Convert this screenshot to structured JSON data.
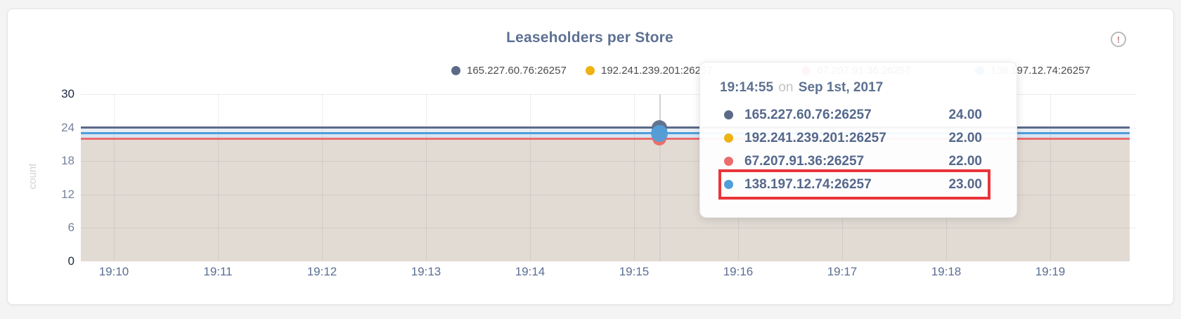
{
  "page": {
    "background": "#f4f4f5"
  },
  "card": {
    "title": "Leaseholders per Store",
    "info_glyph": "!"
  },
  "legend": {
    "items": [
      {
        "label": "165.227.60.76:26257",
        "color": "#5c6a88"
      },
      {
        "label": "192.241.239.201:26257",
        "color": "#eeb211"
      },
      {
        "label": "67.207.91.36:26257",
        "color": "#eb6c6c"
      },
      {
        "label": "138.197.12.74:26257",
        "color": "#4f9fda"
      }
    ]
  },
  "chart_data": {
    "type": "line",
    "title": "Leaseholders per Store",
    "xlabel": "",
    "ylabel": "count",
    "ylim": [
      0,
      30
    ],
    "yticks": [
      0,
      6,
      12,
      18,
      24,
      30
    ],
    "x_ticklabels": [
      "19:10",
      "19:11",
      "19:12",
      "19:13",
      "19:14",
      "19:15",
      "19:16",
      "19:17",
      "19:18",
      "19:19"
    ],
    "grid": true,
    "legend_position": "top-right",
    "series": [
      {
        "name": "165.227.60.76:26257",
        "color": "#5c6a88",
        "value": 24
      },
      {
        "name": "192.241.239.201:26257",
        "color": "#eeb211",
        "value": 22
      },
      {
        "name": "67.207.91.36:26257",
        "color": "#eb6c6c",
        "value": 22
      },
      {
        "name": "138.197.12.74:26257",
        "color": "#4f9fda",
        "value": 23
      }
    ],
    "fill_bands": [
      {
        "top": 24,
        "bottom": 23,
        "color": "#e9edf4"
      },
      {
        "top": 23,
        "bottom": 22,
        "color": "#d7e5f4"
      },
      {
        "top": 22,
        "bottom": 0,
        "color": "#e2dbd4"
      }
    ]
  },
  "hover": {
    "guideline_color": "#d2d2d2"
  },
  "tooltip": {
    "time": "19:14:55",
    "connector": "on",
    "date": "Sep 1st, 2017",
    "rows": [
      {
        "name": "165.227.60.76:26257",
        "value": "24.00",
        "color": "#5c6a88"
      },
      {
        "name": "192.241.239.201:26257",
        "value": "22.00",
        "color": "#eeb211"
      },
      {
        "name": "67.207.91.36:26257",
        "value": "22.00",
        "color": "#eb6c6c"
      },
      {
        "name": "138.197.12.74:26257",
        "value": "23.00",
        "color": "#4f9fda"
      }
    ],
    "highlight_index": 3,
    "highlight_color": "#e8353a"
  }
}
